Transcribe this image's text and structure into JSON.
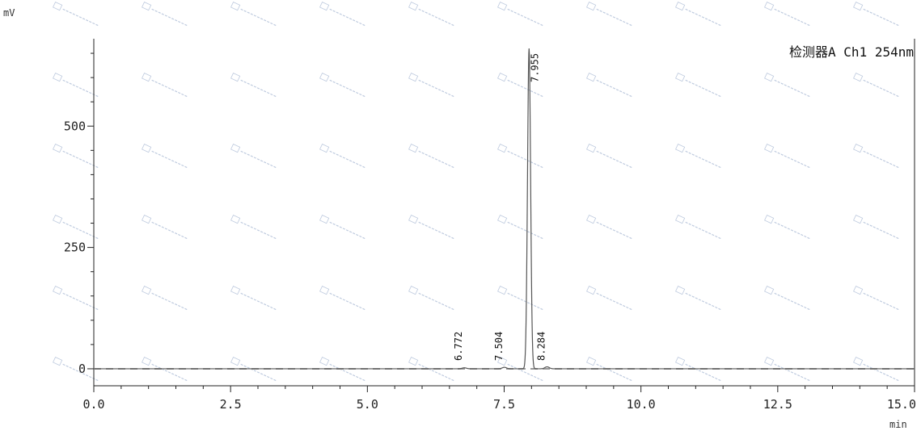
{
  "chart_data": {
    "type": "line",
    "detector_label": "检测器A Ch1 254nm",
    "xlabel": "min",
    "ylabel": "mV",
    "xlim": [
      0,
      15
    ],
    "ylim": [
      -35,
      680
    ],
    "x_ticks": [
      0,
      2.5,
      5,
      7.5,
      10,
      12.5,
      15
    ],
    "x_tick_labels": [
      "0.0",
      "2.5",
      "5.0",
      "7.5",
      "10.0",
      "12.5",
      "15.0"
    ],
    "y_ticks": [
      0,
      250,
      500
    ],
    "y_tick_labels": [
      "0",
      "250",
      "500"
    ],
    "grid": false,
    "peaks": [
      {
        "label": "6.772",
        "rt": 6.772,
        "height": 2
      },
      {
        "label": "7.504",
        "rt": 7.504,
        "height": 3
      },
      {
        "label": "7.955",
        "rt": 7.955,
        "height": 660
      },
      {
        "label": "8.284",
        "rt": 8.284,
        "height": 4
      }
    ]
  }
}
